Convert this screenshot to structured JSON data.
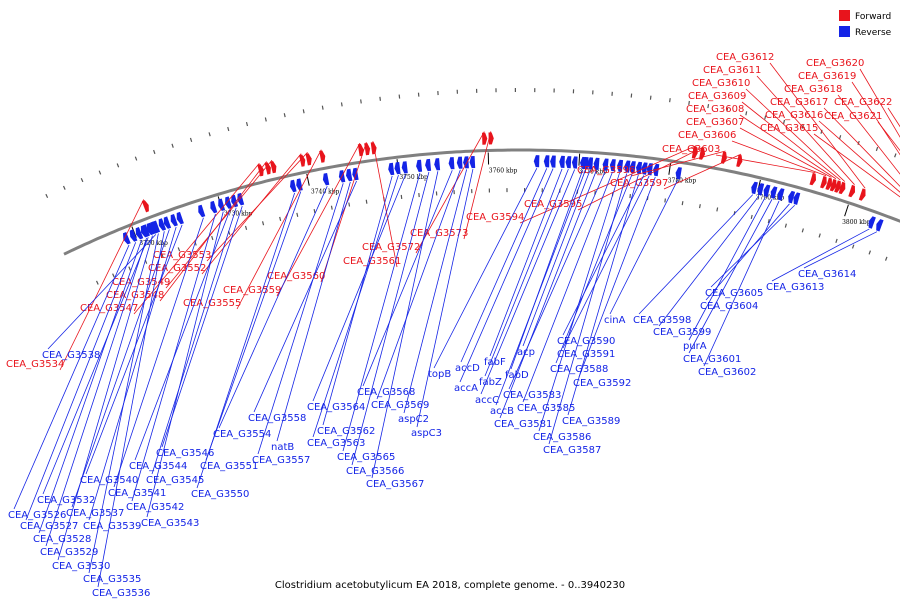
{
  "caption": "Clostridium acetobutylicum EA 2018, complete genome. - 0..3940230",
  "colors": {
    "forward": "#e8141c",
    "reverse": "#1424e6",
    "backbone": "#808080"
  },
  "legend": [
    {
      "strand": "forward",
      "label": "Forward"
    },
    {
      "strand": "reverse",
      "label": "Reverse"
    }
  ],
  "scale": [
    {
      "kbp": 3720,
      "label": "3720 kbp"
    },
    {
      "kbp": 3730,
      "label": "3730 kbp"
    },
    {
      "kbp": 3740,
      "label": "3740 kbp"
    },
    {
      "kbp": 3750,
      "label": "3750 kbp"
    },
    {
      "kbp": 3760,
      "label": "3760 kbp"
    },
    {
      "kbp": 3770,
      "label": "3770 kbp"
    },
    {
      "kbp": 3780,
      "label": "3780 kbp"
    },
    {
      "kbp": 3790,
      "label": "3790 kbp"
    },
    {
      "kbp": 3800,
      "label": "3800 kbp"
    },
    {
      "kbp": 3810,
      "label": "3810 kbp"
    }
  ],
  "forward_genes": [
    {
      "name": "CEA_G3534",
      "kbp": 3722.0
    },
    {
      "name": "CEA_G3547",
      "kbp": 3735.0
    },
    {
      "name": "CEA_G3548",
      "kbp": 3735.8
    },
    {
      "name": "CEA_G3549",
      "kbp": 3736.4
    },
    {
      "name": "CEA_G3552",
      "kbp": 3739.6
    },
    {
      "name": "CEA_G3553",
      "kbp": 3740.3
    },
    {
      "name": "CEA_G3555",
      "kbp": 3741.8
    },
    {
      "name": "CEA_G3559",
      "kbp": 3746.0
    },
    {
      "name": "CEA_G3560",
      "kbp": 3746.7
    },
    {
      "name": "CEA_G3561",
      "kbp": 3747.4
    },
    {
      "name": "CEA_G3572",
      "kbp": 3759.4
    },
    {
      "name": "CEA_G3573",
      "kbp": 3760.1
    },
    {
      "name": "CEA_G3594",
      "kbp": 3782.2
    },
    {
      "name": "CEA_G3595",
      "kbp": 3783.0
    },
    {
      "name": "CEA_G3596",
      "kbp": 3785.4
    },
    {
      "name": "CEA_G3597",
      "kbp": 3787.1
    },
    {
      "name": "CEA_G3603",
      "kbp": 3795.3
    },
    {
      "name": "CEA_G3606",
      "kbp": 3796.5
    },
    {
      "name": "CEA_G3607",
      "kbp": 3797.1
    },
    {
      "name": "CEA_G3608",
      "kbp": 3797.6
    },
    {
      "name": "CEA_G3609",
      "kbp": 3798.1
    },
    {
      "name": "CEA_G3610",
      "kbp": 3798.6
    },
    {
      "name": "CEA_G3611",
      "kbp": 3799.7
    },
    {
      "name": "CEA_G3612",
      "kbp": 3800.9
    },
    {
      "name": "CEA_G3615",
      "kbp": 3806.2
    },
    {
      "name": "CEA_G3616",
      "kbp": 3806.9
    },
    {
      "name": "CEA_G3617",
      "kbp": 3807.5
    },
    {
      "name": "CEA_G3618",
      "kbp": 3808.4
    },
    {
      "name": "CEA_G3619",
      "kbp": 3809.7
    },
    {
      "name": "CEA_G3620",
      "kbp": 3810.6
    },
    {
      "name": "CEA_G3621",
      "kbp": 3811.5
    },
    {
      "name": "CEA_G3622",
      "kbp": 3812.6
    }
  ],
  "reverse_genes": [
    {
      "name": "CEA_G3526",
      "kbp": 3719.2
    },
    {
      "name": "CEA_G3527",
      "kbp": 3720.0
    },
    {
      "name": "CEA_G3528",
      "kbp": 3720.7
    },
    {
      "name": "CEA_G3529",
      "kbp": 3721.3
    },
    {
      "name": "CEA_G3530",
      "kbp": 3722.0
    },
    {
      "name": "CEA_G3532",
      "kbp": 3721.5
    },
    {
      "name": "CEA_G3535",
      "kbp": 3722.7
    },
    {
      "name": "CEA_G3536",
      "kbp": 3723.4
    },
    {
      "name": "CEA_G3537",
      "kbp": 3724.0
    },
    {
      "name": "CEA_G3538",
      "kbp": 3722.4
    },
    {
      "name": "CEA_G3539",
      "kbp": 3724.8
    },
    {
      "name": "CEA_G3540",
      "kbp": 3725.5
    },
    {
      "name": "CEA_G3541",
      "kbp": 3728.0
    },
    {
      "name": "CEA_G3542",
      "kbp": 3729.4
    },
    {
      "name": "CEA_G3543",
      "kbp": 3730.3
    },
    {
      "name": "CEA_G3544",
      "kbp": 3731.1
    },
    {
      "name": "CEA_G3545",
      "kbp": 3731.8
    },
    {
      "name": "CEA_G3546",
      "kbp": 3732.5
    },
    {
      "name": "CEA_G3550",
      "kbp": 3738.5
    },
    {
      "name": "CEA_G3551",
      "kbp": 3739.2
    },
    {
      "name": "CEA_G3554",
      "kbp": 3742.2
    },
    {
      "name": "CEA_G3557",
      "kbp": 3744.0
    },
    {
      "name": "natB",
      "kbp": 3744.8
    },
    {
      "name": "CEA_G3558",
      "kbp": 3745.5
    },
    {
      "name": "CEA_G3562",
      "kbp": 3749.5
    },
    {
      "name": "CEA_G3563",
      "kbp": 3750.2
    },
    {
      "name": "CEA_G3564",
      "kbp": 3751.0
    },
    {
      "name": "CEA_G3565",
      "kbp": 3752.6
    },
    {
      "name": "CEA_G3566",
      "kbp": 3753.6
    },
    {
      "name": "CEA_G3567",
      "kbp": 3754.6
    },
    {
      "name": "CEA_G3568",
      "kbp": 3756.2
    },
    {
      "name": "CEA_G3569",
      "kbp": 3757.1
    },
    {
      "name": "aspC2",
      "kbp": 3757.8
    },
    {
      "name": "aspC3",
      "kbp": 3758.5
    },
    {
      "name": "topB",
      "kbp": 3765.6
    },
    {
      "name": "accD",
      "kbp": 3766.7
    },
    {
      "name": "accA",
      "kbp": 3767.4
    },
    {
      "name": "fabF",
      "kbp": 3768.4
    },
    {
      "name": "fabZ",
      "kbp": 3769.1
    },
    {
      "name": "accC",
      "kbp": 3769.8
    },
    {
      "name": "fabD",
      "kbp": 3770.7
    },
    {
      "name": "acp",
      "kbp": 3771.5
    },
    {
      "name": "accB",
      "kbp": 3771.0
    },
    {
      "name": "CEA_G3581",
      "kbp": 3772.2
    },
    {
      "name": "CEA_G3583",
      "kbp": 3773.2
    },
    {
      "name": "CEA_G3585",
      "kbp": 3774.0
    },
    {
      "name": "CEA_G3586",
      "kbp": 3774.8
    },
    {
      "name": "CEA_G3587",
      "kbp": 3775.6
    },
    {
      "name": "CEA_G3588",
      "kbp": 3776.2
    },
    {
      "name": "CEA_G3589",
      "kbp": 3776.9
    },
    {
      "name": "CEA_G3590",
      "kbp": 3777.5
    },
    {
      "name": "CEA_G3591",
      "kbp": 3778.1
    },
    {
      "name": "CEA_G3592",
      "kbp": 3778.8
    },
    {
      "name": "cinA",
      "kbp": 3781.3
    },
    {
      "name": "CEA_G3598",
      "kbp": 3789.8
    },
    {
      "name": "CEA_G3599",
      "kbp": 3790.5
    },
    {
      "name": "purA",
      "kbp": 3791.2
    },
    {
      "name": "CEA_G3601",
      "kbp": 3792.0
    },
    {
      "name": "CEA_G3602",
      "kbp": 3792.8
    },
    {
      "name": "CEA_G3604",
      "kbp": 3794.0
    },
    {
      "name": "CEA_G3605",
      "kbp": 3794.6
    },
    {
      "name": "CEA_G3613",
      "kbp": 3803.3
    },
    {
      "name": "CEA_G3614",
      "kbp": 3804.2
    }
  ]
}
